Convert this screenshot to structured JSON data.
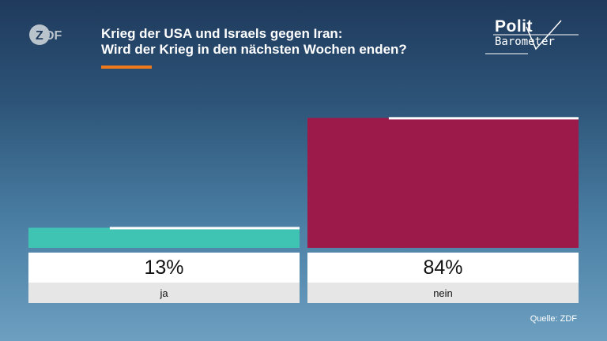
{
  "header": {
    "broadcaster_logo": "zdf-logo",
    "title_line1": "Krieg der USA und Israels gegen Iran:",
    "title_line2": "Wird der Krieg in den nächsten Wochen enden?",
    "accent_color": "#f07a1a",
    "politbarometer_word1": "Polit",
    "politbarometer_word2": "Barometer"
  },
  "chart_data": {
    "type": "bar",
    "categories": [
      "ja",
      "nein"
    ],
    "values": [
      13,
      84
    ],
    "value_labels": [
      "13%",
      "84%"
    ],
    "colors": [
      "#3fc4b4",
      "#9b1a4a"
    ],
    "ylim": [
      0,
      100
    ],
    "previous_values": [
      13,
      84
    ],
    "title": "",
    "xlabel": "",
    "ylabel": ""
  },
  "footer": {
    "source": "Quelle: ZDF"
  }
}
